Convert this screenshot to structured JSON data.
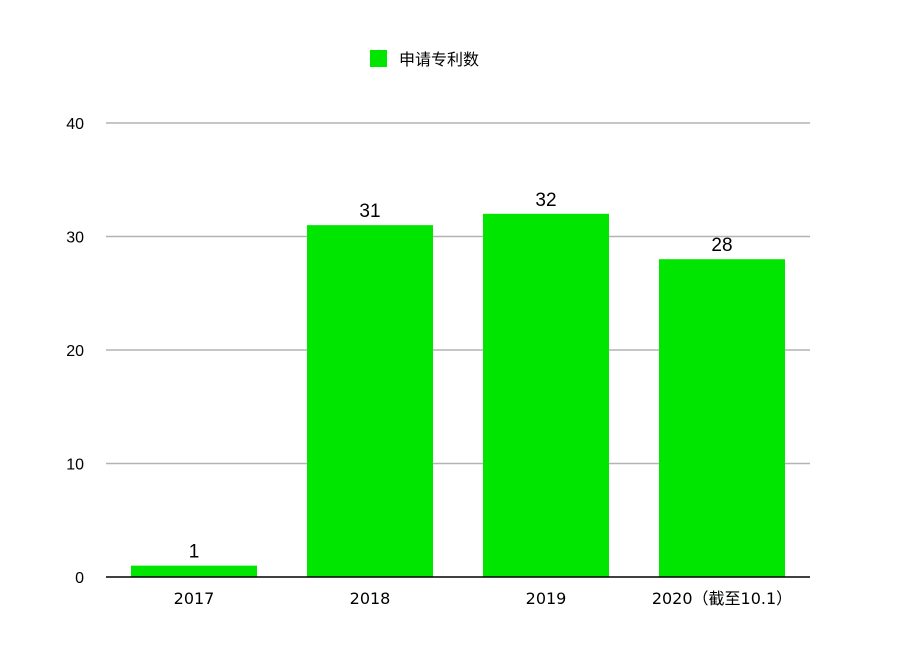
{
  "chart_data": {
    "type": "bar",
    "title": "",
    "xlabel": "",
    "ylabel": "",
    "categories": [
      "2017",
      "2018",
      "2019",
      "2020（截至10.1）"
    ],
    "series": [
      {
        "name": "申请专利数",
        "values": [
          1,
          31,
          32,
          28
        ],
        "color": "#00e600"
      }
    ],
    "ylim": [
      0,
      40
    ],
    "yticks": [
      0,
      10,
      20,
      30,
      40
    ],
    "grid": true,
    "legend_position": "top-center",
    "data_labels": [
      "1",
      "31",
      "32",
      "28"
    ]
  }
}
